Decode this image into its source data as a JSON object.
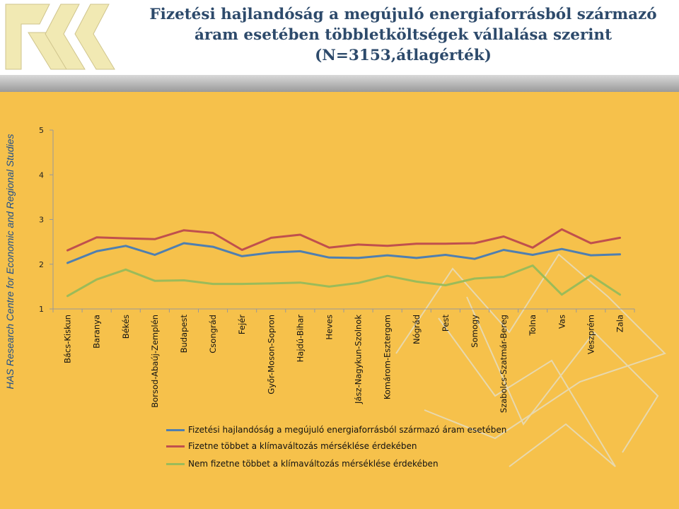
{
  "header": {
    "title_lines": [
      "Fizetési hajlandóság a megújuló energiaforrásból származó",
      "áram esetében többletköltségek vállalása szerint",
      "(N=3153,átlagérték)"
    ],
    "side_text": "HAS Research Centre for Economic and Regional Studies"
  },
  "chart_data": {
    "type": "line",
    "title": "Fizetési hajlandóság a megújuló energiaforrásból származó áram esetében többletköltségek vállalása szerint (N=3153,átlagérték)",
    "ylim": [
      1,
      5
    ],
    "yticks": [
      "1",
      "2",
      "3",
      "4",
      "5"
    ],
    "grid": false,
    "legend_position": "bottom",
    "categories": [
      "Bács-Kiskun",
      "Baranya",
      "Békés",
      "Borsod-Abaúj-Zemplén",
      "Budapest",
      "Csongrád",
      "Fejér",
      "Győr-Moson-Sopron",
      "Hajdú-Bihar",
      "Heves",
      "Jász-Nagykun-Szolnok",
      "Komárom-Esztergom",
      "Nógrád",
      "Pest",
      "Somogy",
      "Szabolcs-Szatmár-Bereg",
      "Tolna",
      "Vas",
      "Veszprém",
      "Zala"
    ],
    "series": [
      {
        "name": "Fizetési hajlandóság a megújuló energiaforrásból származó áram esetében",
        "color": "#4f7fb0",
        "values": [
          2.03,
          2.29,
          2.41,
          2.21,
          2.47,
          2.39,
          2.18,
          2.26,
          2.29,
          2.15,
          2.14,
          2.2,
          2.14,
          2.21,
          2.12,
          2.32,
          2.21,
          2.34,
          2.2,
          2.22
        ]
      },
      {
        "name": "Fizetne többet a klímaváltozás mérséklése érdekében",
        "color": "#c0504d",
        "values": [
          2.31,
          2.6,
          2.58,
          2.56,
          2.76,
          2.7,
          2.32,
          2.59,
          2.66,
          2.37,
          2.44,
          2.41,
          2.46,
          2.46,
          2.47,
          2.62,
          2.37,
          2.78,
          2.47,
          2.59
        ]
      },
      {
        "name": "Nem fizetne többet a klímaváltozás mérséklése érdekében",
        "color": "#9bbb59",
        "values": [
          1.29,
          1.66,
          1.88,
          1.63,
          1.64,
          1.56,
          1.56,
          1.57,
          1.59,
          1.5,
          1.58,
          1.74,
          1.61,
          1.53,
          1.68,
          1.72,
          1.97,
          1.32,
          1.75,
          1.32
        ]
      }
    ]
  },
  "colors": {
    "background": "#f6c14b",
    "title": "#2d4a6b",
    "side_text": "#1f4f8c",
    "logo": "#f1e9b3"
  }
}
